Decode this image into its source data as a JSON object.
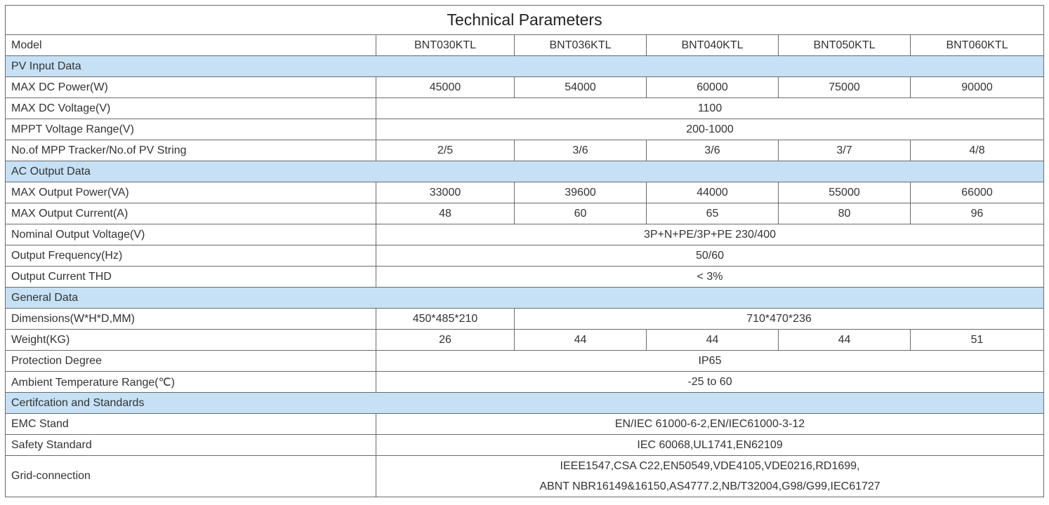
{
  "title": "Technical Parameters",
  "model_row": [
    "Model",
    "BNT030KTL",
    "BNT036KTL",
    "BNT040KTL",
    "BNT050KTL",
    "BNT060KTL"
  ],
  "sections": [
    {
      "title": "PV Input Data",
      "rows": [
        [
          "MAX DC Power(W)",
          "45000",
          "54000",
          "60000",
          "75000",
          "90000"
        ],
        [
          "MAX DC Voltage(V)",
          "1100"
        ],
        [
          "MPPT Voltage Range(V)",
          "200-1000"
        ],
        [
          "No.of MPP Tracker/No.of PV String",
          "2/5",
          "3/6",
          "3/6",
          "3/7",
          "4/8"
        ]
      ]
    },
    {
      "title": "AC Output Data",
      "rows": [
        [
          "MAX Output Power(VA)",
          "33000",
          "39600",
          "44000",
          "55000",
          "66000"
        ],
        [
          "MAX Output Current(A)",
          "48",
          "60",
          "65",
          "80",
          "96"
        ],
        [
          "Nominal Output Voltage(V)",
          "3P+N+PE/3P+PE 230/400"
        ],
        [
          "Output Frequency(Hz)",
          "50/60"
        ],
        [
          "Output Current THD",
          "< 3%"
        ]
      ]
    },
    {
      "title": "General Data",
      "rows": [
        [
          "Dimensions(W*H*D,MM)",
          "450*485*210",
          "710*470*236"
        ],
        [
          "Weight(KG)",
          "26",
          "44",
          "44",
          "44",
          "51"
        ],
        [
          "Protection Degree",
          "IP65"
        ],
        [
          "Ambient Temperature Range(℃)",
          "-25 to 60"
        ]
      ]
    },
    {
      "title": "Certifcation and Standards",
      "rows": [
        [
          "EMC Stand",
          "EN/IEC 61000-6-2,EN/IEC61000-3-12"
        ],
        [
          "Safety Standard",
          "IEC 60068,UL1741,EN62109"
        ],
        [
          "Grid-connection",
          [
            "IEEE1547,CSA C22,EN50549,VDE4105,VDE0216,RD1699,",
            "ABNT NBR16149&16150,AS4777.2,NB/T32004,G98/G99,IEC61727"
          ]
        ]
      ]
    }
  ]
}
